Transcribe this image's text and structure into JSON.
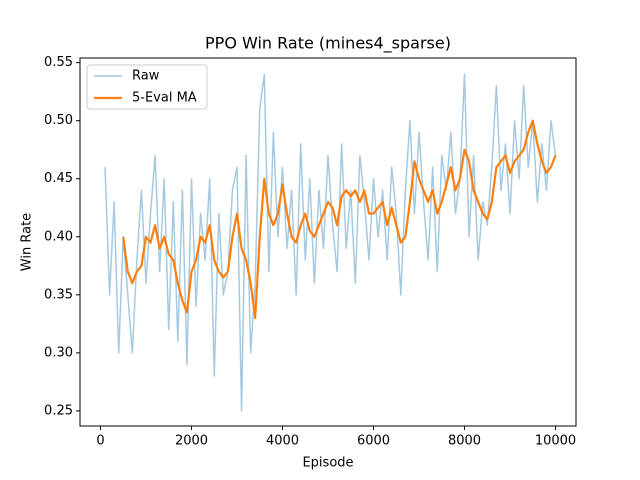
{
  "chart_data": {
    "type": "line",
    "title": "PPO Win Rate (mines4_sparse)",
    "x_label": "Episode",
    "y_label": "Win Rate",
    "x": [
      100,
      200,
      300,
      400,
      500,
      600,
      700,
      800,
      900,
      1000,
      1100,
      1200,
      1300,
      1400,
      1500,
      1600,
      1700,
      1800,
      1900,
      2000,
      2100,
      2200,
      2300,
      2400,
      2500,
      2600,
      2700,
      2800,
      2900,
      3000,
      3100,
      3200,
      3300,
      3400,
      3500,
      3600,
      3700,
      3800,
      3900,
      4000,
      4100,
      4200,
      4300,
      4400,
      4500,
      4600,
      4700,
      4800,
      4900,
      5000,
      5100,
      5200,
      5300,
      5400,
      5500,
      5600,
      5700,
      5800,
      5900,
      6000,
      6100,
      6200,
      6300,
      6400,
      6500,
      6600,
      6700,
      6800,
      6900,
      7000,
      7100,
      7200,
      7300,
      7400,
      7500,
      7600,
      7700,
      7800,
      7900,
      8000,
      8100,
      8200,
      8300,
      8400,
      8500,
      8600,
      8700,
      8800,
      8900,
      9000,
      9100,
      9200,
      9300,
      9400,
      9500,
      9600,
      9700,
      9800,
      9900,
      10000
    ],
    "series": [
      {
        "name": "Raw",
        "color": "#1f77b4",
        "alpha": 0.4,
        "values": [
          0.46,
          0.35,
          0.43,
          0.3,
          0.4,
          0.35,
          0.3,
          0.38,
          0.44,
          0.36,
          0.42,
          0.47,
          0.37,
          0.45,
          0.32,
          0.43,
          0.31,
          0.44,
          0.29,
          0.45,
          0.34,
          0.42,
          0.38,
          0.45,
          0.28,
          0.42,
          0.35,
          0.37,
          0.44,
          0.46,
          0.25,
          0.47,
          0.3,
          0.36,
          0.51,
          0.54,
          0.37,
          0.49,
          0.4,
          0.46,
          0.39,
          0.44,
          0.35,
          0.48,
          0.38,
          0.45,
          0.36,
          0.44,
          0.39,
          0.47,
          0.41,
          0.37,
          0.48,
          0.39,
          0.44,
          0.36,
          0.47,
          0.43,
          0.38,
          0.45,
          0.4,
          0.44,
          0.38,
          0.46,
          0.42,
          0.35,
          0.44,
          0.5,
          0.42,
          0.49,
          0.43,
          0.38,
          0.46,
          0.37,
          0.47,
          0.44,
          0.49,
          0.42,
          0.45,
          0.54,
          0.4,
          0.47,
          0.38,
          0.43,
          0.41,
          0.46,
          0.53,
          0.44,
          0.48,
          0.42,
          0.5,
          0.45,
          0.53,
          0.46,
          0.5,
          0.43,
          0.48,
          0.44,
          0.5,
          0.47
        ]
      },
      {
        "name": "5-Eval MA",
        "color": "#ff7f0e",
        "alpha": 1,
        "values": [
          null,
          null,
          null,
          null,
          0.4,
          0.37,
          0.36,
          0.37,
          0.375,
          0.4,
          0.395,
          0.41,
          0.39,
          0.4,
          0.385,
          0.38,
          0.36,
          0.345,
          0.335,
          0.37,
          0.38,
          0.4,
          0.395,
          0.41,
          0.38,
          0.37,
          0.365,
          0.37,
          0.4,
          0.42,
          0.39,
          0.38,
          0.36,
          0.33,
          0.4,
          0.45,
          0.42,
          0.41,
          0.42,
          0.445,
          0.42,
          0.4,
          0.395,
          0.41,
          0.42,
          0.405,
          0.4,
          0.41,
          0.42,
          0.43,
          0.425,
          0.41,
          0.435,
          0.44,
          0.435,
          0.44,
          0.43,
          0.44,
          0.42,
          0.42,
          0.425,
          0.43,
          0.41,
          0.425,
          0.41,
          0.395,
          0.4,
          0.43,
          0.465,
          0.45,
          0.44,
          0.43,
          0.44,
          0.42,
          0.43,
          0.445,
          0.46,
          0.44,
          0.45,
          0.475,
          0.465,
          0.44,
          0.43,
          0.42,
          0.415,
          0.43,
          0.46,
          0.465,
          0.47,
          0.455,
          0.465,
          0.47,
          0.475,
          0.49,
          0.5,
          0.48,
          0.465,
          0.455,
          0.46,
          0.47
        ]
      }
    ],
    "xlim": [
      -450,
      10450
    ],
    "ylim": [
      0.237,
      0.554
    ],
    "xticks": [
      0,
      2000,
      4000,
      6000,
      8000,
      10000
    ],
    "yticks": [
      0.25,
      {
        "value": 0.3,
        "label": "0.30"
      },
      0.35,
      {
        "value": 0.4,
        "label": "0.40"
      },
      0.45,
      {
        "value": 0.5,
        "label": "0.50"
      },
      0.55
    ],
    "legend": "upper left"
  }
}
